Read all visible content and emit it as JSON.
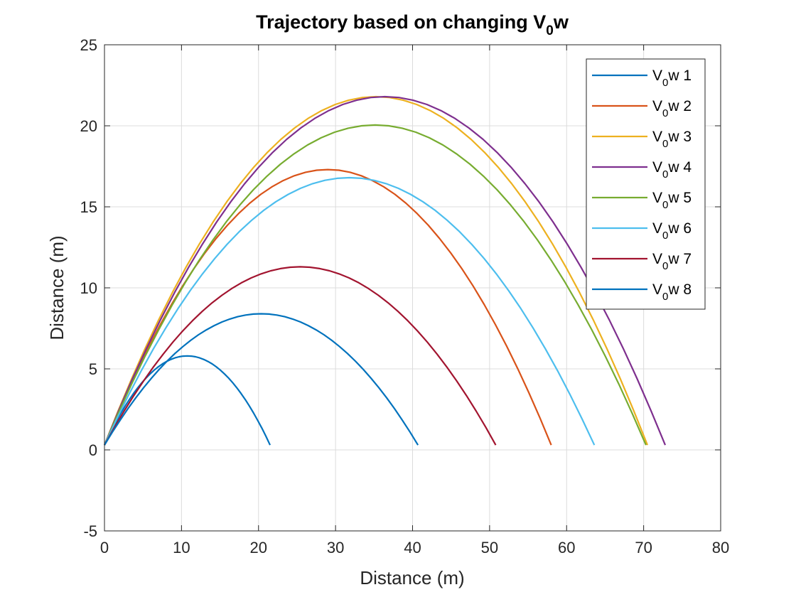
{
  "chart_data": {
    "type": "line",
    "title": {
      "main": "Trajectory based on changing V",
      "sub": "0",
      "tail": "w"
    },
    "xlabel": "Distance (m)",
    "ylabel": "Distance (m)",
    "xlim": [
      0,
      80
    ],
    "ylim": [
      -5,
      25
    ],
    "xticks": [
      "0",
      "10",
      "20",
      "30",
      "40",
      "50",
      "60",
      "70",
      "80"
    ],
    "yticks": [
      "-5",
      "0",
      "5",
      "10",
      "15",
      "20",
      "25"
    ],
    "grid": true,
    "legend_position": "top-right",
    "series": [
      {
        "label": {
          "main": "V",
          "sub": "0",
          "tail": "w 1"
        },
        "color": "#0072BD",
        "range": 21.5,
        "peak": 5.5,
        "y0": 0.3
      },
      {
        "label": {
          "main": "V",
          "sub": "0",
          "tail": "w 2"
        },
        "color": "#D95319",
        "range": 58.0,
        "peak": 17.0,
        "y0": 0.3
      },
      {
        "label": {
          "main": "V",
          "sub": "0",
          "tail": "w 3"
        },
        "color": "#EDB120",
        "range": 70.5,
        "peak": 21.5,
        "y0": 0.3
      },
      {
        "label": {
          "main": "V",
          "sub": "0",
          "tail": "w 4"
        },
        "color": "#7E2F8E",
        "range": 72.8,
        "peak": 21.5,
        "y0": 0.3
      },
      {
        "label": {
          "main": "V",
          "sub": "0",
          "tail": "w 5"
        },
        "color": "#77AC30",
        "range": 70.3,
        "peak": 19.75,
        "y0": 0.3
      },
      {
        "label": {
          "main": "V",
          "sub": "0",
          "tail": "w 6"
        },
        "color": "#4DBEEE",
        "range": 63.6,
        "peak": 16.5,
        "y0": 0.3
      },
      {
        "label": {
          "main": "V",
          "sub": "0",
          "tail": "w 7"
        },
        "color": "#A2142F",
        "range": 50.8,
        "peak": 11.0,
        "y0": 0.3
      },
      {
        "label": {
          "main": "V",
          "sub": "0",
          "tail": "w 8"
        },
        "color": "#0072BD",
        "range": 40.7,
        "peak": 8.1,
        "y0": 0.3
      }
    ]
  }
}
